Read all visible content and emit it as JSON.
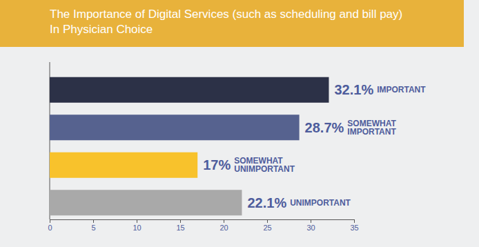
{
  "chart_data": {
    "type": "bar",
    "orientation": "horizontal",
    "title": "The Importance of Digital Services (such as scheduling and bill pay) In Physician Choice",
    "categories": [
      "IMPORTANT",
      "SOMEWHAT IMPORTANT",
      "SOMEWHAT UNIMPORTANT",
      "UNIMPORTANT"
    ],
    "values": [
      32.1,
      28.7,
      17,
      22.1
    ],
    "value_labels": [
      "32.1%",
      "28.7%",
      "17%",
      "22.1%"
    ],
    "colors": [
      "#2c3147",
      "#56628f",
      "#f8c22c",
      "#a9a9a9"
    ],
    "xlim": [
      0,
      35
    ],
    "xticks": [
      0,
      5,
      10,
      15,
      20,
      25,
      30,
      35
    ],
    "data_labels": true,
    "grid": false
  }
}
